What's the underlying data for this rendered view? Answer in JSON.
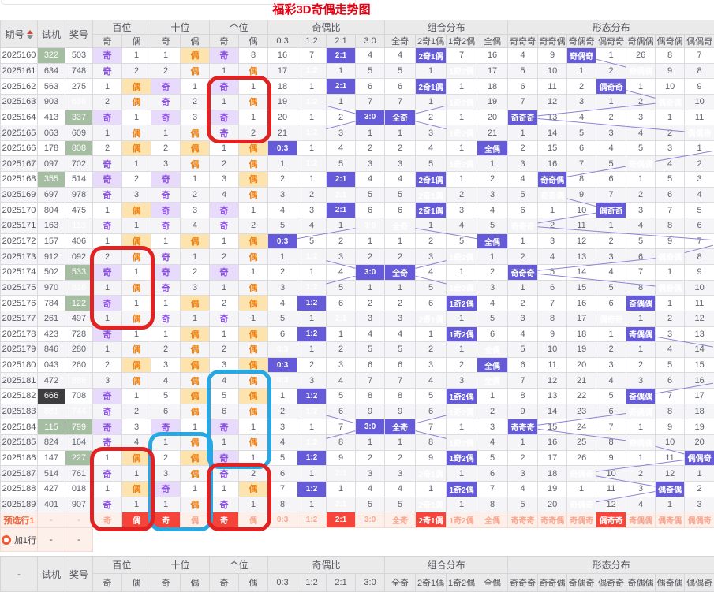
{
  "title": "福彩3D奇偶走势图",
  "header": {
    "qh": "期号",
    "sj": "试机",
    "jh": "奖号",
    "footer_first": "-",
    "groups": [
      {
        "label": "百位",
        "subs": [
          "奇",
          "偶"
        ]
      },
      {
        "label": "十位",
        "subs": [
          "奇",
          "偶"
        ]
      },
      {
        "label": "个位",
        "subs": [
          "奇",
          "偶"
        ]
      },
      {
        "label": "奇偶比",
        "subs": [
          "0:3",
          "1:2",
          "2:1",
          "3:0"
        ]
      },
      {
        "label": "组合分布",
        "subs": [
          "全奇",
          "2奇1偶",
          "1奇2偶",
          "全偶"
        ]
      },
      {
        "label": "形态分布",
        "subs": [
          "奇奇奇",
          "奇奇偶",
          "奇偶奇",
          "偶奇奇",
          "奇偶偶",
          "偶奇偶",
          "偶偶奇"
        ]
      }
    ]
  },
  "rows": [
    {
      "qh": "2025160",
      "sj": "322",
      "jh": "503",
      "sjc": "g",
      "pos": [
        "奇",
        1,
        1,
        "偶",
        "奇",
        8
      ],
      "ratio": [
        16,
        7,
        "2:1",
        4
      ],
      "combo": [
        4,
        "2奇1偶",
        7,
        16
      ],
      "form": [
        4,
        9,
        "奇偶奇",
        1,
        26,
        8,
        7
      ]
    },
    {
      "qh": "2025161",
      "sj": "634",
      "jh": "748",
      "pos": [
        "奇",
        2,
        2,
        "偶",
        1,
        "偶"
      ],
      "ratio": [
        17,
        "1:2",
        1,
        5
      ],
      "combo": [
        5,
        1,
        "1奇2偶",
        17
      ],
      "form": [
        5,
        10,
        1,
        2,
        "奇偶偶",
        9,
        8
      ]
    },
    {
      "qh": "2025162",
      "sj": "563",
      "jh": "275",
      "pos": [
        1,
        "偶",
        "奇",
        1,
        "奇",
        1
      ],
      "ratio": [
        18,
        1,
        "2:1",
        6
      ],
      "combo": [
        6,
        "2奇1偶",
        1,
        18
      ],
      "form": [
        6,
        11,
        2,
        "偶奇奇",
        1,
        10,
        9
      ]
    },
    {
      "qh": "2025163",
      "sj": "903",
      "jh": "636",
      "jhc": "g",
      "pos": [
        2,
        "偶",
        "奇",
        2,
        1,
        "偶"
      ],
      "ratio": [
        19,
        "1:2",
        1,
        7
      ],
      "combo": [
        7,
        1,
        "1奇2偶",
        19
      ],
      "form": [
        7,
        12,
        3,
        1,
        2,
        "偶奇偶",
        10
      ]
    },
    {
      "qh": "2025164",
      "sj": "413",
      "jh": "337",
      "jhc": "g",
      "pos": [
        "奇",
        1,
        "奇",
        3,
        "奇",
        1
      ],
      "ratio": [
        20,
        1,
        2,
        "3:0"
      ],
      "combo": [
        "全奇",
        2,
        1,
        20
      ],
      "form": [
        "奇奇奇",
        13,
        4,
        2,
        3,
        1,
        11
      ]
    },
    {
      "qh": "2025165",
      "sj": "063",
      "jh": "609",
      "pos": [
        1,
        "偶",
        1,
        "偶",
        "奇",
        2
      ],
      "ratio": [
        21,
        "1:2",
        3,
        1
      ],
      "combo": [
        1,
        3,
        "1奇2偶",
        21
      ],
      "form": [
        1,
        14,
        5,
        3,
        4,
        2,
        "偶偶奇"
      ]
    },
    {
      "qh": "2025166",
      "sj": "178",
      "jh": "808",
      "jhc": "g",
      "pos": [
        2,
        "偶",
        2,
        "偶",
        1,
        "偶"
      ],
      "ratio": [
        "0:3",
        1,
        4,
        2
      ],
      "combo": [
        2,
        4,
        1,
        "全偶"
      ],
      "form": [
        2,
        15,
        6,
        4,
        5,
        3,
        1
      ],
      "form_off": true
    },
    {
      "qh": "2025167",
      "sj": "097",
      "jh": "702",
      "pos": [
        "奇",
        1,
        3,
        "偶",
        2,
        "偶"
      ],
      "ratio": [
        1,
        "1:2",
        5,
        3
      ],
      "combo": [
        3,
        5,
        "1奇2偶",
        1
      ],
      "form": [
        3,
        16,
        7,
        5,
        "奇偶偶",
        4,
        2
      ]
    },
    {
      "qh": "2025168",
      "sj": "355",
      "jh": "514",
      "sjc": "g",
      "pos": [
        "奇",
        2,
        "奇",
        1,
        3,
        "偶"
      ],
      "ratio": [
        2,
        1,
        "2:1",
        4
      ],
      "combo": [
        4,
        "2奇1偶",
        1,
        2
      ],
      "form": [
        4,
        "奇奇偶",
        8,
        6,
        1,
        5,
        3
      ]
    },
    {
      "qh": "2025169",
      "sj": "697",
      "jh": "978",
      "pos": [
        "奇",
        3,
        "奇",
        2,
        4,
        "偶"
      ],
      "ratio": [
        3,
        2,
        "2:1",
        5
      ],
      "combo": [
        5,
        "2奇1偶",
        2,
        3
      ],
      "form": [
        5,
        "奇奇偶",
        9,
        7,
        2,
        6,
        4
      ]
    },
    {
      "qh": "2025170",
      "sj": "804",
      "jh": "475",
      "pos": [
        1,
        "偶",
        "奇",
        3,
        "奇",
        1
      ],
      "ratio": [
        4,
        3,
        "2:1",
        6
      ],
      "combo": [
        6,
        "2奇1偶",
        3,
        4
      ],
      "form": [
        6,
        1,
        10,
        "偶奇奇",
        3,
        7,
        5
      ]
    },
    {
      "qh": "2025171",
      "sj": "163",
      "jh": "113",
      "jhc": "g",
      "pos": [
        "奇",
        1,
        "奇",
        4,
        "奇",
        2
      ],
      "ratio": [
        5,
        4,
        1,
        "3:0"
      ],
      "combo": [
        "全奇",
        1,
        4,
        5
      ],
      "form": [
        "奇奇奇",
        2,
        11,
        1,
        4,
        8,
        6
      ]
    },
    {
      "qh": "2025172",
      "sj": "157",
      "jh": "406",
      "pos": [
        1,
        "偶",
        1,
        "偶",
        1,
        "偶"
      ],
      "ratio": [
        "0:3",
        5,
        2,
        1
      ],
      "combo": [
        1,
        2,
        5,
        "全偶"
      ],
      "form": [
        1,
        3,
        12,
        2,
        5,
        9,
        7
      ],
      "form_off": true
    },
    {
      "qh": "2025173",
      "sj": "912",
      "jh": "092",
      "pos": [
        2,
        "偶",
        "奇",
        1,
        2,
        "偶"
      ],
      "ratio": [
        1,
        "1:2",
        3,
        2
      ],
      "combo": [
        2,
        3,
        "1奇2偶",
        1
      ],
      "form": [
        2,
        4,
        13,
        3,
        6,
        "偶奇偶",
        8
      ]
    },
    {
      "qh": "2025174",
      "sj": "502",
      "jh": "533",
      "jhc": "g",
      "pos": [
        "奇",
        1,
        "奇",
        2,
        "奇",
        1
      ],
      "ratio": [
        2,
        1,
        4,
        "3:0"
      ],
      "combo": [
        "全奇",
        4,
        1,
        2
      ],
      "form": [
        "奇奇奇",
        5,
        14,
        4,
        7,
        1,
        9
      ]
    },
    {
      "qh": "2025175",
      "sj": "970",
      "jh": "616",
      "jhc": "g",
      "pos": [
        1,
        "偶",
        "奇",
        3,
        1,
        "偶"
      ],
      "ratio": [
        3,
        "1:2",
        5,
        1
      ],
      "combo": [
        1,
        5,
        "1奇2偶",
        3
      ],
      "form": [
        1,
        6,
        15,
        5,
        8,
        "偶奇偶",
        10
      ]
    },
    {
      "qh": "2025176",
      "sj": "784",
      "jh": "122",
      "jhc": "g",
      "pos": [
        "奇",
        1,
        1,
        "偶",
        2,
        "偶"
      ],
      "ratio": [
        4,
        "1:2",
        6,
        2
      ],
      "combo": [
        2,
        6,
        "1奇2偶",
        4
      ],
      "form": [
        2,
        7,
        16,
        6,
        "奇偶偶",
        1,
        11
      ]
    },
    {
      "qh": "2025177",
      "sj": "261",
      "jh": "497",
      "pos": [
        1,
        "偶",
        "奇",
        1,
        "奇",
        1
      ],
      "ratio": [
        5,
        1,
        "2:1",
        3
      ],
      "combo": [
        3,
        "2奇1偶",
        1,
        5
      ],
      "form": [
        3,
        8,
        17,
        "偶奇奇",
        1,
        2,
        12
      ]
    },
    {
      "qh": "2025178",
      "sj": "423",
      "jh": "728",
      "pos": [
        "奇",
        1,
        1,
        "偶",
        1,
        "偶"
      ],
      "ratio": [
        6,
        "1:2",
        1,
        4
      ],
      "combo": [
        4,
        1,
        "1奇2偶",
        6
      ],
      "form": [
        4,
        9,
        18,
        1,
        "奇偶偶",
        3,
        13
      ]
    },
    {
      "qh": "2025179",
      "sj": "846",
      "jh": "280",
      "pos": [
        1,
        "偶",
        2,
        "偶",
        2,
        "偶"
      ],
      "ratio": [
        "0:3",
        1,
        2,
        5
      ],
      "combo": [
        5,
        2,
        1,
        "全偶"
      ],
      "form": [
        5,
        10,
        19,
        2,
        1,
        4,
        14
      ],
      "form_off": true
    },
    {
      "qh": "2025180",
      "sj": "043",
      "jh": "260",
      "pos": [
        2,
        "偶",
        3,
        "偶",
        3,
        "偶"
      ],
      "ratio": [
        "0:3",
        2,
        3,
        6
      ],
      "combo": [
        6,
        3,
        2,
        "全偶"
      ],
      "form": [
        6,
        11,
        20,
        3,
        2,
        5,
        15
      ],
      "form_off": true
    },
    {
      "qh": "2025181",
      "sj": "472",
      "jh": "886",
      "jhc": "g",
      "pos": [
        3,
        "偶",
        4,
        "偶",
        4,
        "偶"
      ],
      "ratio": [
        "0:3",
        3,
        4,
        7
      ],
      "combo": [
        7,
        4,
        3,
        "全偶"
      ],
      "form": [
        7,
        12,
        21,
        4,
        3,
        6,
        16
      ],
      "form_off": true
    },
    {
      "qh": "2025182",
      "sj": "666",
      "jh": "708",
      "sjc": "k",
      "pos": [
        "奇",
        1,
        5,
        "偶",
        5,
        "偶"
      ],
      "ratio": [
        1,
        "1:2",
        5,
        8
      ],
      "combo": [
        8,
        5,
        "1奇2偶",
        1
      ],
      "form": [
        8,
        13,
        22,
        5,
        "奇偶偶",
        7,
        17
      ]
    },
    {
      "qh": "2025183",
      "sj": "881",
      "jh": "744",
      "sjc": "g",
      "jhc": "g",
      "pos": [
        "奇",
        2,
        6,
        "偶",
        6,
        "偶"
      ],
      "ratio": [
        2,
        "1:2",
        6,
        9
      ],
      "combo": [
        9,
        6,
        "1奇2偶",
        2
      ],
      "form": [
        9,
        14,
        23,
        6,
        "奇偶偶",
        8,
        18
      ]
    },
    {
      "qh": "2025184",
      "sj": "115",
      "jh": "799",
      "sjc": "g",
      "jhc": "g",
      "pos": [
        "奇",
        3,
        "奇",
        1,
        "奇",
        1
      ],
      "ratio": [
        3,
        1,
        7,
        "3:0"
      ],
      "combo": [
        "全奇",
        7,
        1,
        3
      ],
      "form": [
        "奇奇奇",
        15,
        24,
        7,
        1,
        9,
        19
      ]
    },
    {
      "qh": "2025185",
      "sj": "824",
      "jh": "164",
      "pos": [
        "奇",
        4,
        1,
        "偶",
        1,
        "偶"
      ],
      "ratio": [
        4,
        "1:2",
        8,
        1
      ],
      "combo": [
        1,
        8,
        "1奇2偶",
        4
      ],
      "form": [
        1,
        16,
        25,
        8,
        "奇偶偶",
        10,
        20
      ]
    },
    {
      "qh": "2025186",
      "sj": "147",
      "jh": "227",
      "jhc": "g",
      "pos": [
        1,
        "偶",
        2,
        "偶",
        "奇",
        1
      ],
      "ratio": [
        5,
        "1:2",
        9,
        2
      ],
      "combo": [
        2,
        9,
        "1奇2偶",
        5
      ],
      "form": [
        2,
        17,
        26,
        9,
        1,
        11,
        "偶偶奇"
      ]
    },
    {
      "qh": "2025187",
      "sj": "514",
      "jh": "761",
      "pos": [
        "奇",
        1,
        3,
        "偶",
        "奇",
        2
      ],
      "ratio": [
        6,
        1,
        "2:1",
        3
      ],
      "combo": [
        3,
        "2奇1偶",
        1,
        6
      ],
      "form": [
        3,
        18,
        "奇偶奇",
        10,
        2,
        12,
        1
      ]
    },
    {
      "qh": "2025188",
      "sj": "427",
      "jh": "018",
      "pos": [
        1,
        "偶",
        "奇",
        1,
        1,
        "偶"
      ],
      "ratio": [
        7,
        "1:2",
        1,
        4
      ],
      "combo": [
        4,
        1,
        "1奇2偶",
        7
      ],
      "form": [
        4,
        19,
        1,
        11,
        3,
        "偶奇偶",
        2
      ]
    },
    {
      "qh": "2025189",
      "sj": "401",
      "jh": "907",
      "pos": [
        "奇",
        1,
        1,
        "偶",
        "奇",
        1
      ],
      "ratio": [
        8,
        1,
        "2:1",
        5
      ],
      "combo": [
        5,
        "2奇1偶",
        1,
        8
      ],
      "form": [
        5,
        20,
        "奇偶奇",
        12,
        4,
        1,
        3
      ]
    }
  ],
  "presel": {
    "label": "预选行1",
    "sj": "-",
    "jh": "-",
    "pos_sel": [
      1,
      0,
      0
    ],
    "ratio_sel": 2,
    "combo_sel": 1,
    "form_sel": 3
  },
  "addrow": {
    "label": "加1行",
    "sj": "-",
    "jh": "-"
  },
  "colors": {
    "title": "#e60012",
    "odd_bg": "#e7dafa",
    "odd_text": "#8a50e0",
    "even_bg": "#fde4ae",
    "even_text": "#ee8318",
    "selected_bg": "#655ad8",
    "selected_text": "#ffffff",
    "green_bg": "#a5bda1",
    "black_bg": "#3d3d40",
    "line": "#8b82d6",
    "presel_bg": "#fdefe9",
    "presel_text": "#f7a68f",
    "presel_selected_bg": "#f5443a",
    "annot_red": "#e02222",
    "annot_blue": "#28a7e2"
  },
  "annotations": [
    {
      "color": "red",
      "cols": "ge",
      "row_start": 2,
      "row_end": 5
    },
    {
      "color": "red",
      "cols": "bai",
      "row_start": 13,
      "row_end": 17
    },
    {
      "color": "blue",
      "cols": "ge",
      "row_start": 21,
      "row_end": 26
    },
    {
      "color": "blue",
      "cols": "shi",
      "row_start": 25,
      "row_end": 30
    },
    {
      "color": "red",
      "cols": "bai",
      "row_start": 26,
      "row_end": 30
    },
    {
      "color": "red",
      "cols": "ge",
      "row_start": 27,
      "row_end": 30
    }
  ]
}
